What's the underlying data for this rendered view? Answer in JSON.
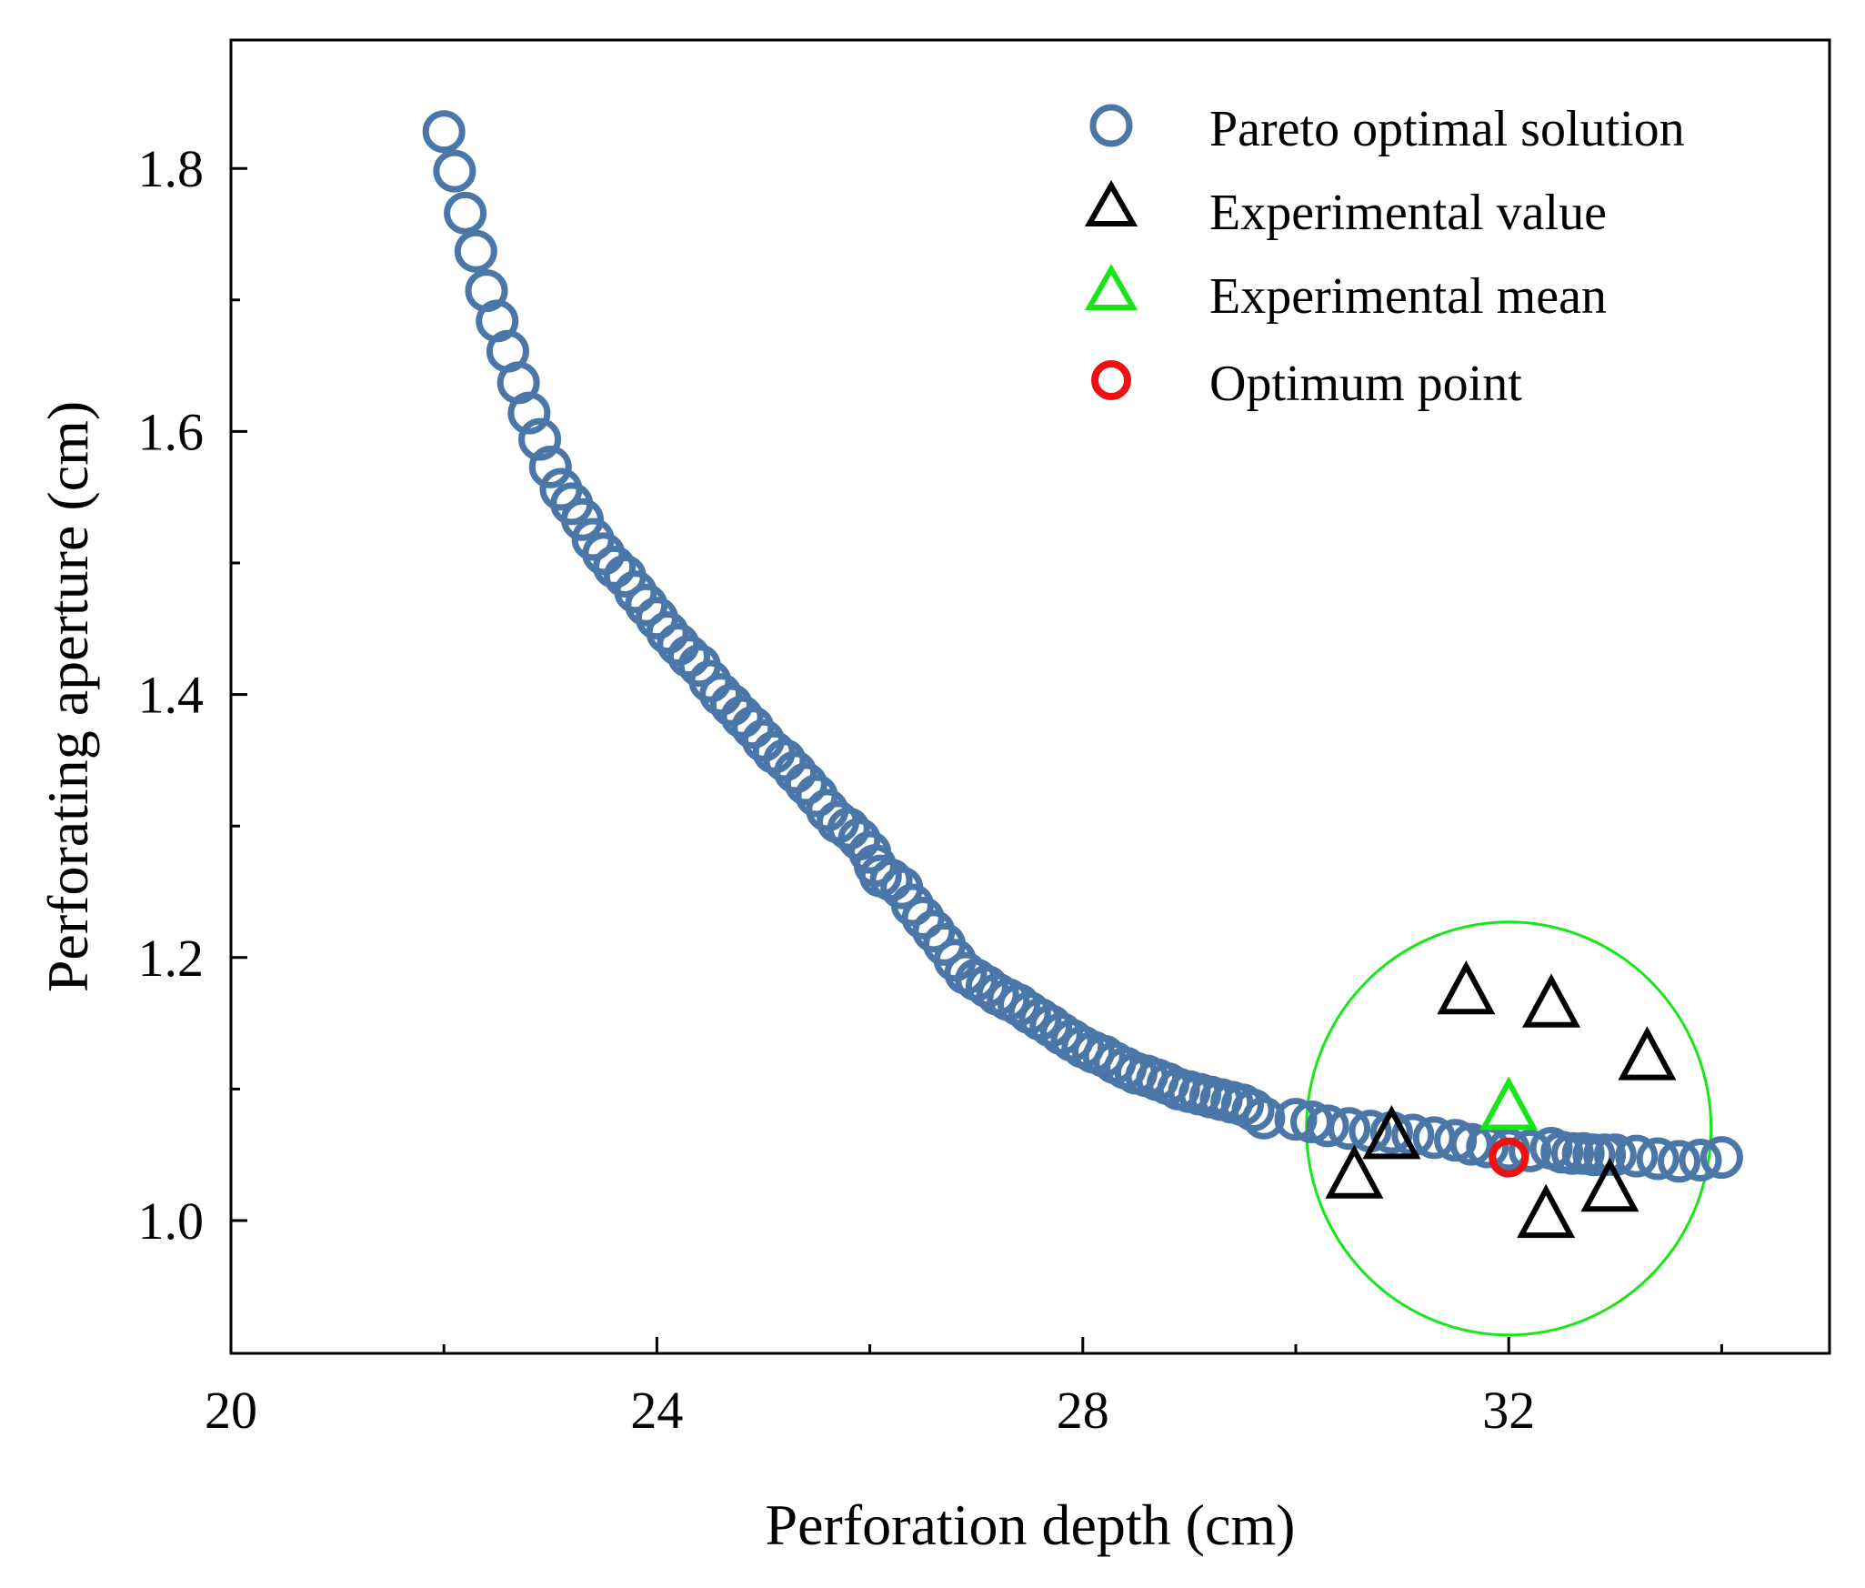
{
  "chart_data": {
    "type": "scatter",
    "title": "",
    "xlabel": "Perforation depth (cm)",
    "ylabel": "Perforating aperture (cm)",
    "xlim": [
      20,
      35
    ],
    "ylim": [
      0.9,
      1.9
    ],
    "x_ticks": [
      "20",
      "24",
      "28",
      "32"
    ],
    "y_ticks": [
      "1.0",
      "1.2",
      "1.4",
      "1.6",
      "1.8"
    ],
    "legend_position": "top-right",
    "colors": {
      "pareto": "#4a77a8",
      "experimental": "#000000",
      "mean": "#19e619",
      "optimum": "#ee1111",
      "region": "#19e619"
    },
    "series": [
      {
        "name": "Pareto optimal solution",
        "marker": "circle",
        "points": [
          [
            22.0,
            1.828
          ],
          [
            22.1,
            1.798
          ],
          [
            22.2,
            1.766
          ],
          [
            22.3,
            1.737
          ],
          [
            22.4,
            1.707
          ],
          [
            22.5,
            1.684
          ],
          [
            22.6,
            1.661
          ],
          [
            22.7,
            1.637
          ],
          [
            22.8,
            1.614
          ],
          [
            22.9,
            1.594
          ],
          [
            23.0,
            1.573
          ],
          [
            23.1,
            1.556
          ],
          [
            23.2,
            1.545
          ],
          [
            23.3,
            1.533
          ],
          [
            23.4,
            1.518
          ],
          [
            23.5,
            1.507
          ],
          [
            23.6,
            1.497
          ],
          [
            23.7,
            1.49
          ],
          [
            23.8,
            1.478
          ],
          [
            23.9,
            1.468
          ],
          [
            24.0,
            1.458
          ],
          [
            24.1,
            1.447
          ],
          [
            24.2,
            1.438
          ],
          [
            24.3,
            1.429
          ],
          [
            24.4,
            1.422
          ],
          [
            24.5,
            1.41
          ],
          [
            24.6,
            1.4
          ],
          [
            24.7,
            1.392
          ],
          [
            24.8,
            1.383
          ],
          [
            24.9,
            1.375
          ],
          [
            25.0,
            1.365
          ],
          [
            25.1,
            1.356
          ],
          [
            25.2,
            1.35
          ],
          [
            25.3,
            1.341
          ],
          [
            25.4,
            1.332
          ],
          [
            25.5,
            1.323
          ],
          [
            25.6,
            1.312
          ],
          [
            25.7,
            1.303
          ],
          [
            25.8,
            1.298
          ],
          [
            25.9,
            1.29
          ],
          [
            26.0,
            1.28
          ],
          [
            26.05,
            1.27
          ],
          [
            26.1,
            1.262
          ],
          [
            26.2,
            1.259
          ],
          [
            26.3,
            1.253
          ],
          [
            26.4,
            1.24
          ],
          [
            26.5,
            1.23
          ],
          [
            26.6,
            1.22
          ],
          [
            26.7,
            1.21
          ],
          [
            26.8,
            1.198
          ],
          [
            26.9,
            1.188
          ],
          [
            27.0,
            1.183
          ],
          [
            27.1,
            1.178
          ],
          [
            27.2,
            1.172
          ],
          [
            27.3,
            1.168
          ],
          [
            27.4,
            1.164
          ],
          [
            27.5,
            1.158
          ],
          [
            27.6,
            1.153
          ],
          [
            27.7,
            1.148
          ],
          [
            27.8,
            1.142
          ],
          [
            27.9,
            1.137
          ],
          [
            28.0,
            1.132
          ],
          [
            28.1,
            1.128
          ],
          [
            28.2,
            1.125
          ],
          [
            28.3,
            1.12
          ],
          [
            28.4,
            1.116
          ],
          [
            28.5,
            1.112
          ],
          [
            28.6,
            1.11
          ],
          [
            28.7,
            1.107
          ],
          [
            28.8,
            1.104
          ],
          [
            28.9,
            1.1
          ],
          [
            29.0,
            1.098
          ],
          [
            29.1,
            1.096
          ],
          [
            29.2,
            1.094
          ],
          [
            29.3,
            1.092
          ],
          [
            29.4,
            1.09
          ],
          [
            29.5,
            1.088
          ],
          [
            29.6,
            1.084
          ],
          [
            29.7,
            1.078
          ],
          [
            30.0,
            1.077
          ],
          [
            30.15,
            1.075
          ],
          [
            30.3,
            1.072
          ],
          [
            30.5,
            1.07
          ],
          [
            30.7,
            1.068
          ],
          [
            30.9,
            1.067
          ],
          [
            31.1,
            1.065
          ],
          [
            31.3,
            1.063
          ],
          [
            31.5,
            1.061
          ],
          [
            31.65,
            1.058
          ],
          [
            31.8,
            1.056
          ],
          [
            32.0,
            1.054
          ],
          [
            32.2,
            1.053
          ],
          [
            32.4,
            1.055
          ],
          [
            32.5,
            1.052
          ],
          [
            32.6,
            1.051
          ],
          [
            32.7,
            1.051
          ],
          [
            32.8,
            1.05
          ],
          [
            32.9,
            1.05
          ],
          [
            33.0,
            1.05
          ],
          [
            33.2,
            1.049
          ],
          [
            33.4,
            1.047
          ],
          [
            33.6,
            1.045
          ],
          [
            33.8,
            1.046
          ],
          [
            34.0,
            1.048
          ]
        ]
      },
      {
        "name": "Experimental value",
        "marker": "triangle",
        "points": [
          [
            31.6,
            1.172
          ],
          [
            32.4,
            1.162
          ],
          [
            33.3,
            1.122
          ],
          [
            30.9,
            1.062
          ],
          [
            30.55,
            1.032
          ],
          [
            32.95,
            1.022
          ],
          [
            32.35,
            1.002
          ]
        ]
      },
      {
        "name": "Experimental mean",
        "marker": "triangle",
        "points": [
          [
            32.0,
            1.084
          ]
        ]
      },
      {
        "name": "Optimum point",
        "marker": "circle",
        "points": [
          [
            32.0,
            1.048
          ]
        ]
      }
    ],
    "annotations": [
      {
        "type": "circle-region",
        "center": [
          32.0,
          1.07
        ],
        "radius_x": 1.9,
        "radius_y": 0.157
      }
    ]
  }
}
